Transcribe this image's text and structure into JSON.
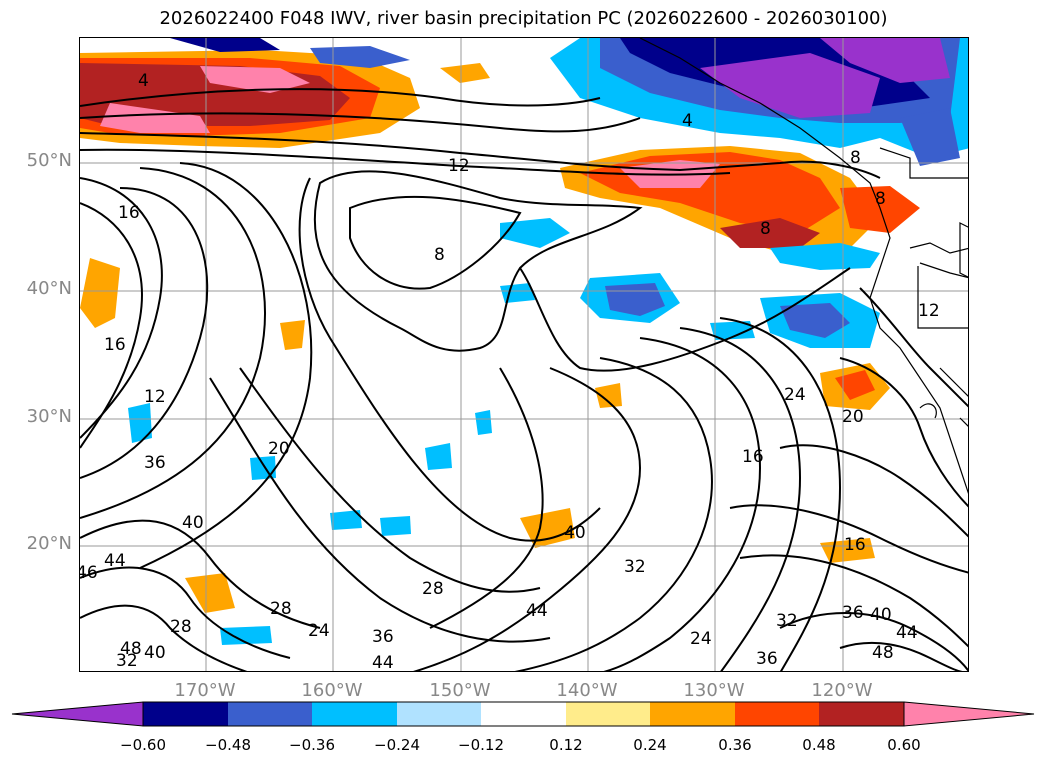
{
  "title": "2026022400 F048 IWV, river basin precipitation PC (2026022600 - 2026030100)",
  "lat_labels": [
    "50°N",
    "40°N",
    "30°N",
    "20°N"
  ],
  "lon_labels": [
    "170°W",
    "160°W",
    "150°W",
    "140°W",
    "130°W",
    "120°W"
  ],
  "colorbar": {
    "ticks": [
      "−0.60",
      "−0.48",
      "−0.36",
      "−0.24",
      "−0.12",
      "0.12",
      "0.24",
      "0.36",
      "0.48",
      "0.60"
    ],
    "colors": [
      "#9932CC",
      "#00008B",
      "#3A5FCD",
      "#00BFFF",
      "#B0E2FF",
      "#FFFFFF",
      "#FFEC8B",
      "#FFA500",
      "#FF4500",
      "#B22222",
      "#FF82AB"
    ]
  },
  "contour_labels": {
    "c4": "4",
    "c12a": "12",
    "c16a": "16",
    "c8a": "8",
    "c8b": "8",
    "c8c": "8",
    "c4b": "4",
    "c8d": "8",
    "c16b": "16",
    "c12b": "12",
    "c36a": "36",
    "c40a": "40",
    "c20a": "20",
    "c44a": "44",
    "c46": "46",
    "c28a": "28",
    "c28b": "28",
    "c28c": "28",
    "c24a": "24",
    "c36b": "36",
    "c44b": "44",
    "c48": "48",
    "c40b": "40",
    "c32a": "32",
    "c40c": "40",
    "c44c": "44",
    "c12c": "12",
    "c24b": "24",
    "c20b": "20",
    "c16c": "16",
    "c16d": "16",
    "c32b": "32",
    "c36c": "36",
    "c40d": "40",
    "c44d": "44",
    "c48b": "48",
    "c36d": "36",
    "c24c": "24",
    "c32c": "32"
  }
}
